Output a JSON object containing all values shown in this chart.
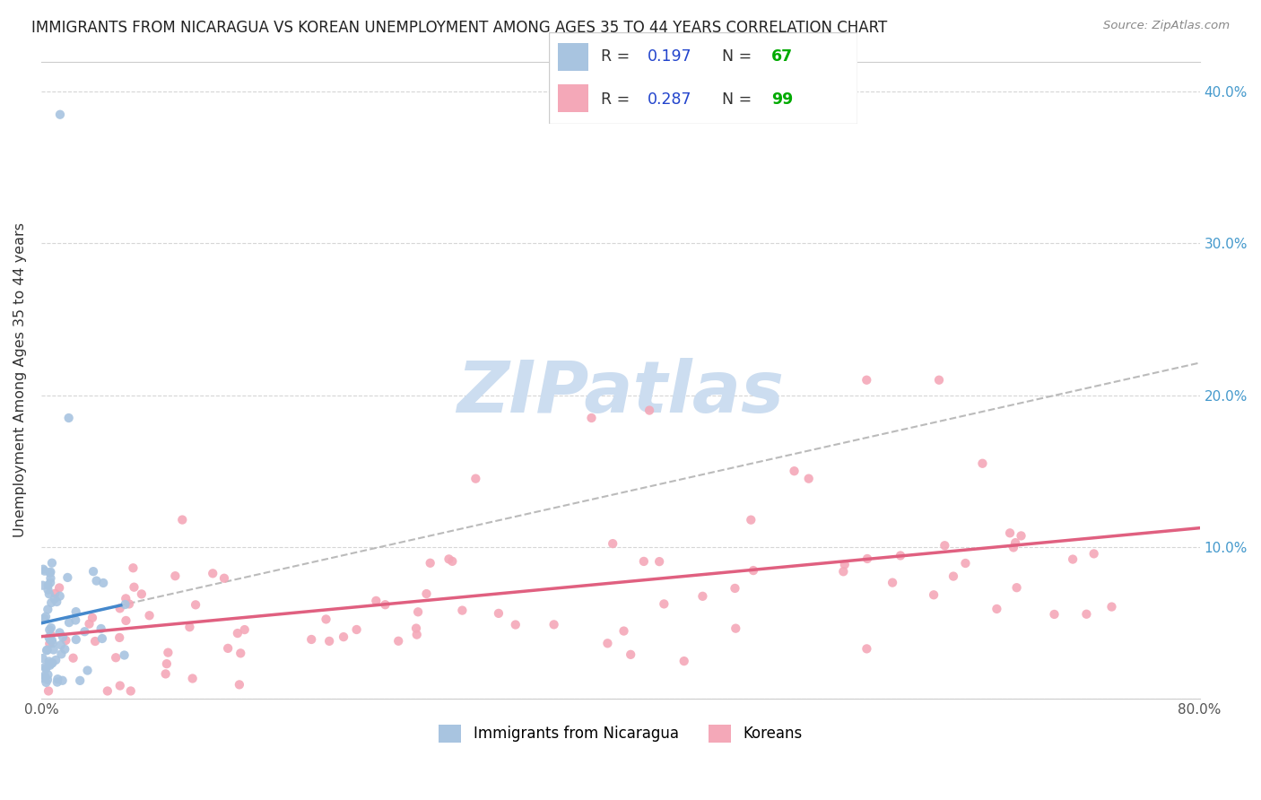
{
  "title": "IMMIGRANTS FROM NICARAGUA VS KOREAN UNEMPLOYMENT AMONG AGES 35 TO 44 YEARS CORRELATION CHART",
  "source": "Source: ZipAtlas.com",
  "ylabel": "Unemployment Among Ages 35 to 44 years",
  "xlim": [
    0.0,
    0.8
  ],
  "ylim": [
    0.0,
    0.42
  ],
  "r_nicaragua": 0.197,
  "n_nicaragua": 67,
  "r_korean": 0.287,
  "n_korean": 99,
  "blue_color": "#a8c4e0",
  "pink_color": "#f4a8b8",
  "trendline_blue": "#4488cc",
  "trendline_pink": "#e06080",
  "trendline_dashed_color": "#bbbbbb",
  "watermark_color": "#ccddf0",
  "legend_r_color": "#2244cc",
  "legend_n_color": "#00aa00",
  "right_axis_color": "#4499cc",
  "dot_size": 55
}
